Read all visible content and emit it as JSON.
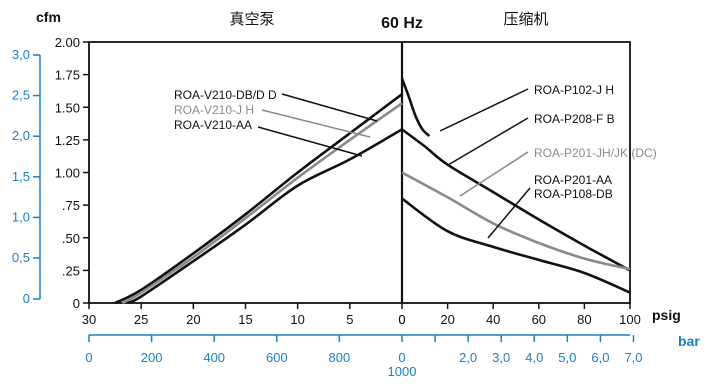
{
  "chart_data": {
    "type": "line",
    "title": "60 Hz",
    "left_section_label": "真空泵",
    "right_section_label": "压缩机",
    "ylabel": "cfm",
    "ylim": [
      0,
      2.0
    ],
    "y_ticks": [
      "2.00",
      "1.75",
      "1.50",
      "1.25",
      "1.00",
      ".75",
      ".50",
      ".25",
      "0"
    ],
    "y_tick_values": [
      2.0,
      1.75,
      1.5,
      1.25,
      1.0,
      0.75,
      0.5,
      0.25,
      0
    ],
    "y2_ticks": [
      "3,0",
      "2,5",
      "2,0",
      "1,5",
      "1,0",
      "0,5",
      "0"
    ],
    "y2_tick_values": [
      3.0,
      2.5,
      2.0,
      1.5,
      1.0,
      0.5,
      0
    ],
    "vacuum_axis": {
      "xlim": [
        30,
        0
      ],
      "tick_labels": [
        "30",
        "25",
        "20",
        "15",
        "10",
        "5",
        "0"
      ],
      "tick_values": [
        30,
        25,
        20,
        15,
        10,
        5,
        0
      ],
      "bar_ticks": [
        "0",
        "200",
        "400",
        "600",
        "800"
      ],
      "bar_tick_values": [
        0,
        200,
        400,
        600,
        800
      ],
      "bar_end_label": "1000"
    },
    "pressure_axis": {
      "xlim": [
        0,
        100
      ],
      "unit_label": "psig",
      "tick_labels": [
        "0",
        "20",
        "40",
        "60",
        "80",
        "100"
      ],
      "tick_values": [
        0,
        20,
        40,
        60,
        80,
        100
      ],
      "bar_unit_label": "bar",
      "bar_ticks": [
        "0",
        "2,0",
        "3,0",
        "4,0",
        "5,0",
        "6,0",
        "7,0"
      ],
      "bar_tick_values": [
        0,
        2.0,
        3.0,
        4.0,
        5.0,
        6.0,
        7.0
      ]
    },
    "vacuum_series": [
      {
        "name": "ROA-V210-DB/D D",
        "color": "#111111",
        "x": [
          27.5,
          25,
          20,
          15,
          10,
          5,
          0
        ],
        "y": [
          0.0,
          0.1,
          0.38,
          0.68,
          1.0,
          1.3,
          1.6
        ]
      },
      {
        "name": "ROA-V210-J H",
        "color": "#8a8a8a",
        "x": [
          26.8,
          25,
          20,
          15,
          10,
          5,
          0
        ],
        "y": [
          0.0,
          0.08,
          0.35,
          0.65,
          0.96,
          1.25,
          1.53
        ]
      },
      {
        "name": "ROA-V210-AA",
        "color": "#111111",
        "x": [
          26.3,
          25,
          20,
          15,
          10,
          5,
          0
        ],
        "y": [
          0.0,
          0.05,
          0.32,
          0.6,
          0.9,
          1.1,
          1.33
        ]
      }
    ],
    "pressure_series": [
      {
        "name": "ROA-P102-J H",
        "color": "#111111",
        "x": [
          0,
          3,
          6,
          9,
          12
        ],
        "y": [
          1.72,
          1.58,
          1.43,
          1.33,
          1.28
        ]
      },
      {
        "name": "ROA-P208-F B",
        "color": "#111111",
        "x": [
          0,
          10,
          20,
          40,
          60,
          80,
          100
        ],
        "y": [
          1.33,
          1.2,
          1.06,
          0.85,
          0.64,
          0.44,
          0.25
        ]
      },
      {
        "name": "ROA-P201-JH/JK (DC)",
        "color": "#8a8a8a",
        "x": [
          0,
          20,
          40,
          60,
          80,
          100
        ],
        "y": [
          1.0,
          0.81,
          0.61,
          0.46,
          0.34,
          0.26
        ]
      },
      {
        "name": "ROA-P201-AA",
        "color": "#111111",
        "x": [
          0,
          20,
          40,
          60,
          80,
          100
        ],
        "y": [
          0.8,
          0.55,
          0.43,
          0.33,
          0.23,
          0.08
        ]
      },
      {
        "name": "ROA-P108-DB",
        "color": "#111111",
        "x": [],
        "y": []
      }
    ],
    "grid": false
  }
}
